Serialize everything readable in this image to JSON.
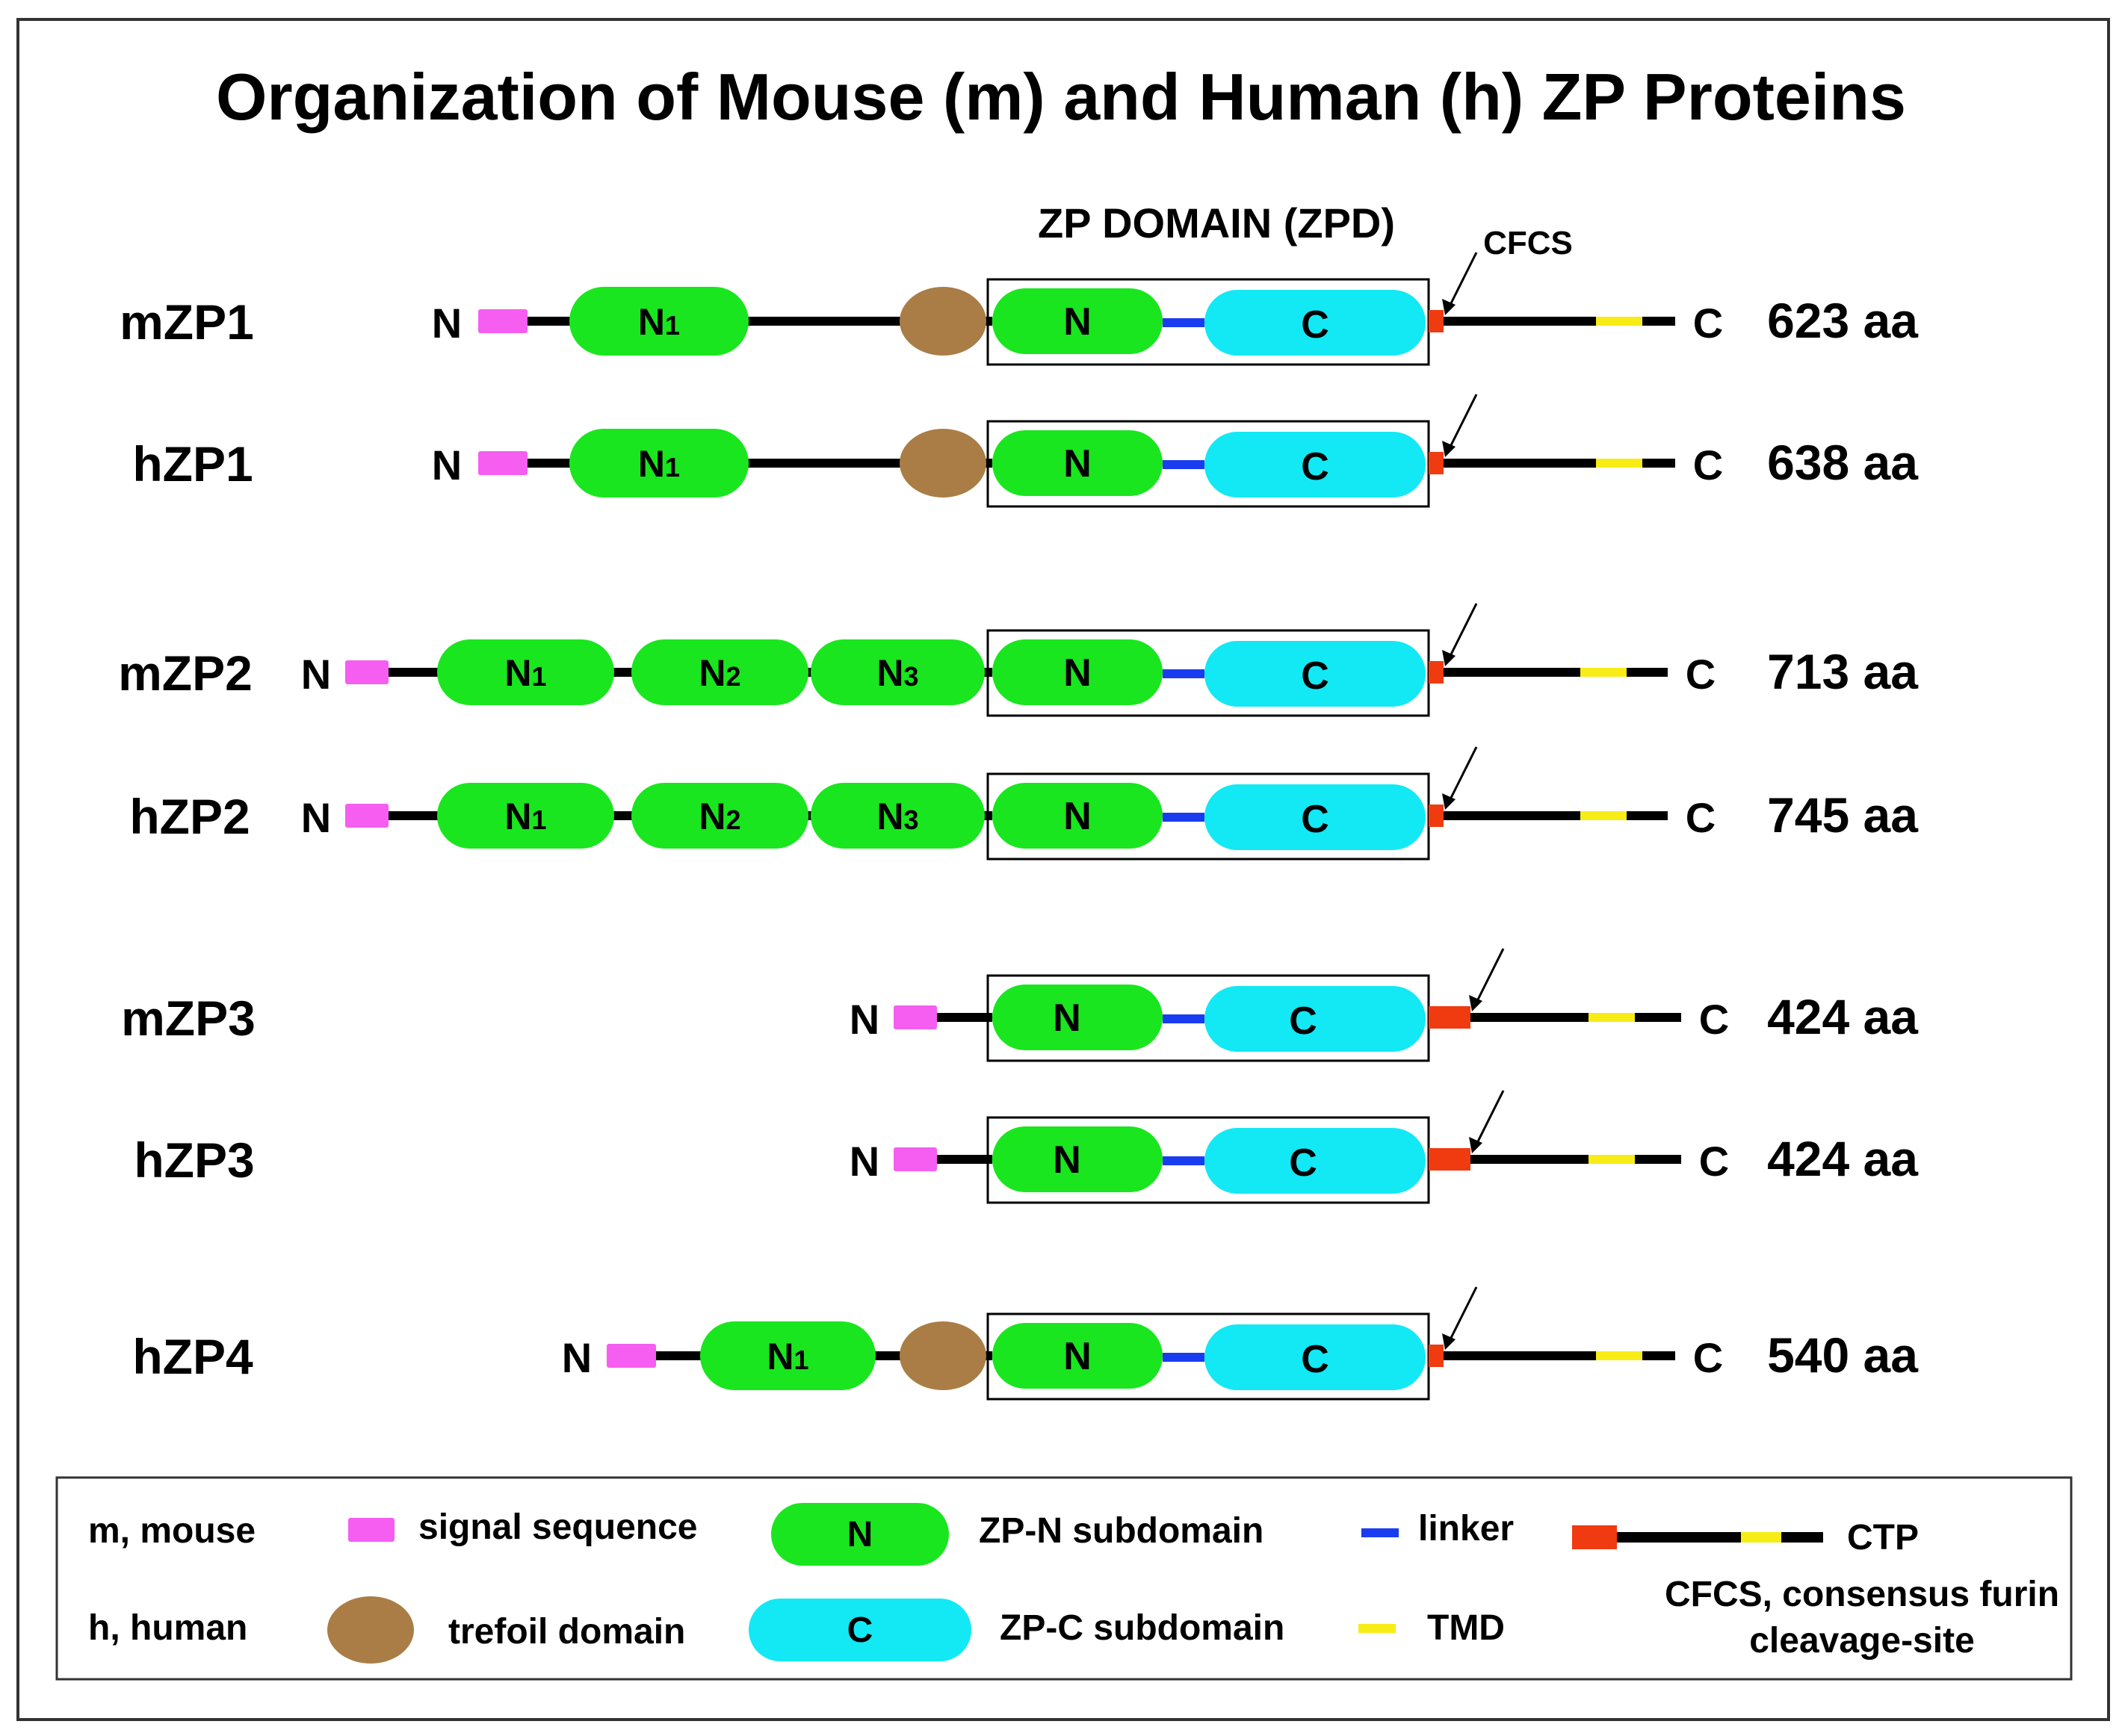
{
  "title": "Organization of Mouse (m) and Human (h) ZP Proteins",
  "zpd_label": "ZP DOMAIN (ZPD)",
  "cfcs_label": "CFCS",
  "colors": {
    "signal": "#f55ef0",
    "zp_n": "#19e61e",
    "zp_c": "#13e8f5",
    "trefoil": "#a97d45",
    "linker": "#1a3cf0",
    "tmd": "#f7ec16",
    "cfcs": "#f03a10",
    "line": "#000000"
  },
  "proteins": [
    {
      "name": "mZP1",
      "length": "623 aa",
      "n_term": "N",
      "c_term": "C",
      "n_domains": [
        "N1"
      ],
      "trefoil": true,
      "zpn": "N",
      "zpc": "C"
    },
    {
      "name": "hZP1",
      "length": "638 aa",
      "n_term": "N",
      "c_term": "C",
      "n_domains": [
        "N1"
      ],
      "trefoil": true,
      "zpn": "N",
      "zpc": "C"
    },
    {
      "name": "mZP2",
      "length": "713 aa",
      "n_term": "N",
      "c_term": "C",
      "n_domains": [
        "N1",
        "N2",
        "N3"
      ],
      "trefoil": false,
      "zpn": "N",
      "zpc": "C"
    },
    {
      "name": "hZP2",
      "length": "745 aa",
      "n_term": "N",
      "c_term": "C",
      "n_domains": [
        "N1",
        "N2",
        "N3"
      ],
      "trefoil": false,
      "zpn": "N",
      "zpc": "C"
    },
    {
      "name": "mZP3",
      "length": "424 aa",
      "n_term": "N",
      "c_term": "C",
      "n_domains": [],
      "trefoil": false,
      "zpn": "N",
      "zpc": "C"
    },
    {
      "name": "hZP3",
      "length": "424 aa",
      "n_term": "N",
      "c_term": "C",
      "n_domains": [],
      "trefoil": false,
      "zpn": "N",
      "zpc": "C"
    },
    {
      "name": "hZP4",
      "length": "540 aa",
      "n_term": "N",
      "c_term": "C",
      "n_domains": [
        "N1"
      ],
      "trefoil": true,
      "zpn": "N",
      "zpc": "C"
    }
  ],
  "legend": {
    "mouse": "m, mouse",
    "human": "h, human",
    "signal": "signal sequence",
    "trefoil": "trefoil domain",
    "zpn_glyph": "N",
    "zpn": "ZP-N subdomain",
    "zpc_glyph": "C",
    "zpc": "ZP-C subdomain",
    "linker": "linker",
    "tmd": "TMD",
    "ctp": "CTP",
    "cfcs_line1": "CFCS, consensus furin",
    "cfcs_line2": "cleavage-site"
  }
}
